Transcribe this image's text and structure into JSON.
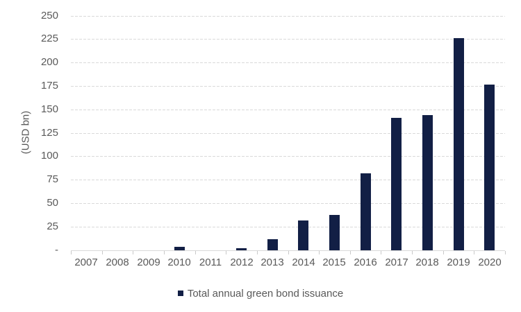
{
  "chart_data": {
    "type": "bar",
    "categories": [
      "2007",
      "2008",
      "2009",
      "2010",
      "2011",
      "2012",
      "2013",
      "2014",
      "2015",
      "2016",
      "2017",
      "2018",
      "2019",
      "2020"
    ],
    "series": [
      {
        "name": "Total annual green bond issuance",
        "values": [
          0,
          0,
          0,
          4,
          0,
          2,
          12,
          32,
          38,
          82,
          141,
          144,
          226,
          177
        ]
      }
    ],
    "title": "",
    "xlabel": "",
    "ylabel": "(USD bn)",
    "ylim": [
      0,
      250
    ],
    "ytick_values": [
      0,
      25,
      50,
      75,
      100,
      125,
      150,
      175,
      200,
      225,
      250
    ],
    "ytick_labels": [
      "-",
      "25",
      "50",
      "75",
      "100",
      "125",
      "150",
      "175",
      "200",
      "225",
      "250"
    ],
    "grid": "horizontal-dashed",
    "legend_position": "bottom-center",
    "bar_color": "#121F45",
    "gridline_color": "#D9D9D9",
    "axis_color": "#D9D9D9",
    "tick_color": "#C9C9C9",
    "label_color": "#595959"
  }
}
